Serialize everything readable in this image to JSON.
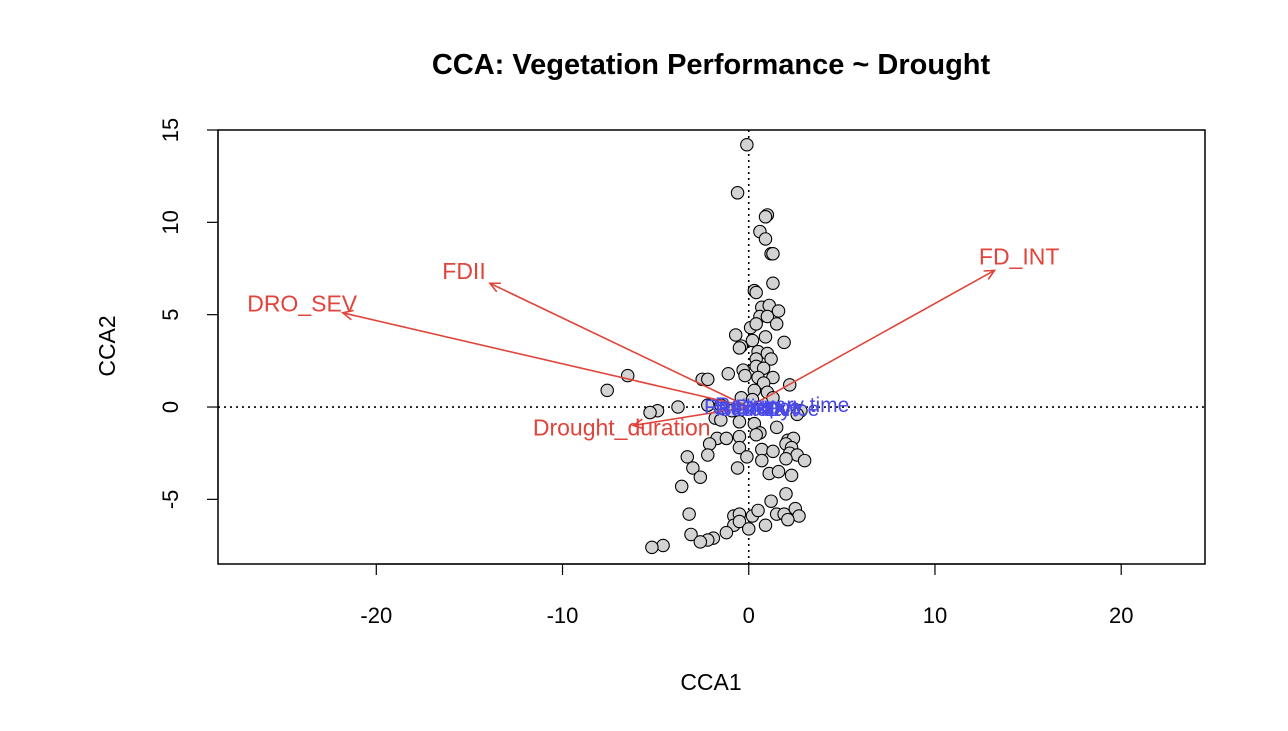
{
  "chart_data": {
    "type": "scatter",
    "title": "CCA: Vegetation Performance ~ Drought",
    "xlabel": "CCA1",
    "ylabel": "CCA2",
    "xlim": [
      -28.5,
      24.5
    ],
    "ylim": [
      -8.5,
      15
    ],
    "xticks": [
      -20,
      -10,
      0,
      10,
      20
    ],
    "yticks": [
      -5,
      0,
      5,
      10,
      15
    ],
    "reference_lines": {
      "x": 0,
      "y": 0,
      "style": "dotted"
    },
    "point_color": "#d3d3d3",
    "arrow_color": "#e0443a",
    "response_color": "#4a4ae8",
    "points": [
      [
        -0.1,
        14.2
      ],
      [
        -0.6,
        11.6
      ],
      [
        1.0,
        10.4
      ],
      [
        0.9,
        10.3
      ],
      [
        0.6,
        9.5
      ],
      [
        0.9,
        9.1
      ],
      [
        1.2,
        8.3
      ],
      [
        1.3,
        8.3
      ],
      [
        1.3,
        6.7
      ],
      [
        0.3,
        6.3
      ],
      [
        0.4,
        6.2
      ],
      [
        0.7,
        5.4
      ],
      [
        1.1,
        5.5
      ],
      [
        1.6,
        5.2
      ],
      [
        0.6,
        4.9
      ],
      [
        1.0,
        4.9
      ],
      [
        0.1,
        4.3
      ],
      [
        0.4,
        4.5
      ],
      [
        1.5,
        4.5
      ],
      [
        -0.7,
        3.9
      ],
      [
        0.2,
        3.6
      ],
      [
        0.9,
        3.8
      ],
      [
        1.9,
        3.5
      ],
      [
        -0.4,
        3.3
      ],
      [
        -0.5,
        3.2
      ],
      [
        0.5,
        3.0
      ],
      [
        1.0,
        2.9
      ],
      [
        0.4,
        2.6
      ],
      [
        1.2,
        2.6
      ],
      [
        0.4,
        2.2
      ],
      [
        -0.3,
        2.0
      ],
      [
        0.8,
        2.1
      ],
      [
        -1.1,
        1.8
      ],
      [
        -0.2,
        1.7
      ],
      [
        0.5,
        1.6
      ],
      [
        1.3,
        1.6
      ],
      [
        -2.5,
        1.5
      ],
      [
        -2.2,
        1.5
      ],
      [
        0.8,
        1.3
      ],
      [
        2.2,
        1.2
      ],
      [
        -6.5,
        1.7
      ],
      [
        -7.6,
        0.9
      ],
      [
        0.3,
        0.9
      ],
      [
        1.0,
        0.8
      ],
      [
        -0.4,
        0.5
      ],
      [
        0.2,
        0.4
      ],
      [
        1.3,
        0.5
      ],
      [
        -1.5,
        0.1
      ],
      [
        -2.2,
        0.1
      ],
      [
        -3.8,
        0.0
      ],
      [
        -4.9,
        -0.2
      ],
      [
        -5.3,
        -0.3
      ],
      [
        -0.9,
        -0.2
      ],
      [
        -0.5,
        -0.2
      ],
      [
        2.8,
        -0.2
      ],
      [
        2.6,
        -0.4
      ],
      [
        -1.8,
        -0.6
      ],
      [
        -1.5,
        -0.7
      ],
      [
        -0.5,
        -0.8
      ],
      [
        0.3,
        -0.9
      ],
      [
        1.5,
        -1.1
      ],
      [
        0.6,
        -1.4
      ],
      [
        -1.7,
        -1.7
      ],
      [
        -1.2,
        -1.7
      ],
      [
        -0.5,
        -1.6
      ],
      [
        0.4,
        -1.5
      ],
      [
        2.1,
        -1.8
      ],
      [
        2.4,
        -1.7
      ],
      [
        2.0,
        -2.0
      ],
      [
        -2.1,
        -2.0
      ],
      [
        -0.5,
        -2.2
      ],
      [
        0.7,
        -2.3
      ],
      [
        1.3,
        -2.4
      ],
      [
        2.3,
        -2.2
      ],
      [
        2.2,
        -2.5
      ],
      [
        2.6,
        -2.6
      ],
      [
        -2.2,
        -2.6
      ],
      [
        -3.3,
        -2.7
      ],
      [
        -0.1,
        -2.7
      ],
      [
        0.7,
        -2.9
      ],
      [
        2.0,
        -2.8
      ],
      [
        3.0,
        -2.9
      ],
      [
        -3.0,
        -3.3
      ],
      [
        -0.6,
        -3.3
      ],
      [
        -2.6,
        -3.8
      ],
      [
        1.1,
        -3.6
      ],
      [
        1.6,
        -3.5
      ],
      [
        2.3,
        -3.7
      ],
      [
        -3.6,
        -4.3
      ],
      [
        2.0,
        -4.7
      ],
      [
        1.2,
        -5.1
      ],
      [
        -3.2,
        -5.8
      ],
      [
        -0.8,
        -5.9
      ],
      [
        -0.5,
        -5.8
      ],
      [
        0.2,
        -5.9
      ],
      [
        0.5,
        -5.6
      ],
      [
        1.5,
        -5.8
      ],
      [
        1.9,
        -5.8
      ],
      [
        2.5,
        -5.5
      ],
      [
        2.7,
        -5.9
      ],
      [
        2.1,
        -6.1
      ],
      [
        -0.8,
        -6.4
      ],
      [
        -0.5,
        -6.2
      ],
      [
        0.0,
        -6.6
      ],
      [
        0.9,
        -6.4
      ],
      [
        -3.1,
        -6.9
      ],
      [
        -1.2,
        -6.8
      ],
      [
        -1.9,
        -7.1
      ],
      [
        -2.2,
        -7.2
      ],
      [
        -2.6,
        -7.3
      ],
      [
        -4.6,
        -7.5
      ],
      [
        -5.2,
        -7.6
      ]
    ],
    "arrows": [
      {
        "label": "FD_INT",
        "x": 13.2,
        "y": 7.4
      },
      {
        "label": "FDII",
        "x": -13.9,
        "y": 6.7
      },
      {
        "label": "DRO_SEV",
        "x": -21.8,
        "y": 5.1
      },
      {
        "label": "Drought_duration",
        "x": -6.2,
        "y": -1.0
      }
    ],
    "responses": [
      {
        "label": "Resilience",
        "x": 0.2,
        "y": 0.0
      },
      {
        "label": "Recovery time",
        "x": 1.8,
        "y": 0.1
      },
      {
        "label": "Stability",
        "x": 0.3,
        "y": -0.1
      },
      {
        "label": "Resistance",
        "x": 1.0,
        "y": -0.1
      },
      {
        "label": "Drop",
        "x": 0.5,
        "y": 0.0
      },
      {
        "label": "EVI",
        "x": 1.7,
        "y": -0.1
      }
    ]
  }
}
